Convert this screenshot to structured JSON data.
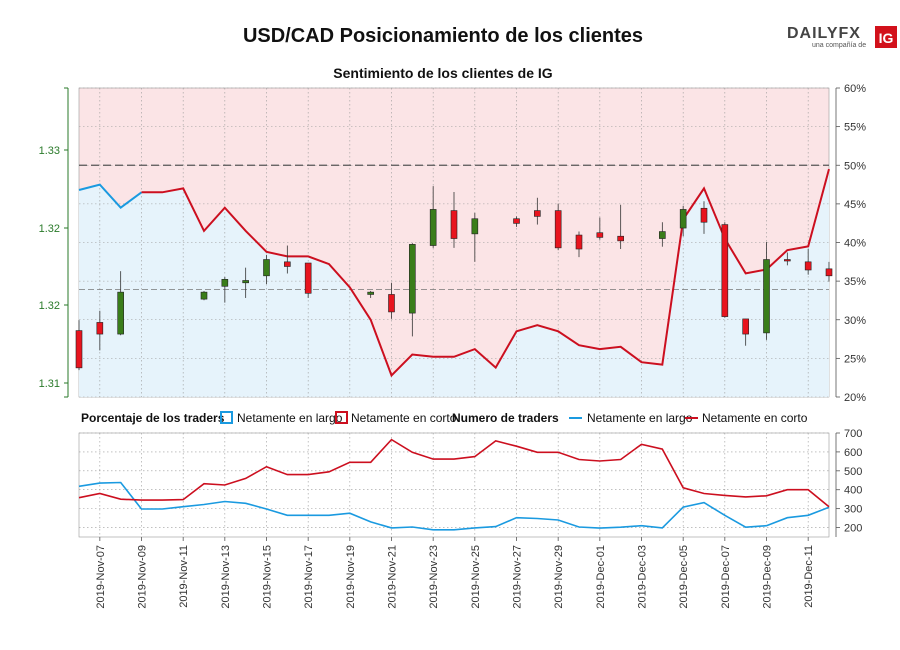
{
  "header": {
    "title": "USD/CAD Posicionamiento de los clientes",
    "brand": "DAILYFX",
    "brand_sub": "una compañía de",
    "brand_badge": "IG"
  },
  "colors": {
    "long": "#1a9ae0",
    "short": "#cc0f1f",
    "candle_up": "#3a7d1a",
    "candle_down": "#e8141e",
    "bg_long": "#e6f3fb",
    "bg_short": "#fbe4e6"
  },
  "chart_data": [
    {
      "type": "line",
      "title": "Sentimiento de los clientes de IG",
      "x": [
        "2019-Nov-06",
        "2019-Nov-07",
        "2019-Nov-08",
        "2019-Nov-09",
        "2019-Nov-10",
        "2019-Nov-11",
        "2019-Nov-12",
        "2019-Nov-13",
        "2019-Nov-14",
        "2019-Nov-15",
        "2019-Nov-16",
        "2019-Nov-17",
        "2019-Nov-18",
        "2019-Nov-19",
        "2019-Nov-20",
        "2019-Nov-21",
        "2019-Nov-22",
        "2019-Nov-23",
        "2019-Nov-24",
        "2019-Nov-25",
        "2019-Nov-26",
        "2019-Nov-27",
        "2019-Nov-28",
        "2019-Nov-29",
        "2019-Nov-30",
        "2019-Dec-01",
        "2019-Dec-02",
        "2019-Dec-03",
        "2019-Dec-04",
        "2019-Dec-05",
        "2019-Dec-06",
        "2019-Dec-07",
        "2019-Dec-08",
        "2019-Dec-09",
        "2019-Dec-10",
        "2019-Dec-11",
        "2019-Dec-12"
      ],
      "series": [
        {
          "name": "Netamente en corto",
          "values": [
            null,
            null,
            null,
            46.5,
            46.5,
            47,
            41.5,
            44.5,
            41.5,
            38.8,
            38.2,
            38.2,
            37.2,
            34.2,
            30,
            22.8,
            25.5,
            25.2,
            25.2,
            26.2,
            23.8,
            28.5,
            29.3,
            28.5,
            26.7,
            26.2,
            26.5,
            24.5,
            24.2,
            43,
            47,
            40.5,
            36,
            36.5,
            39,
            39.5,
            49.5
          ]
        },
        {
          "name": "Netamente en largo",
          "values": [
            53.2,
            52.5,
            55.5,
            53.5,
            53.5,
            53,
            58.5,
            55.5,
            58.5,
            61.2,
            61.8,
            61.8,
            62.8,
            65.8,
            70,
            77.2,
            74.5,
            74.8,
            74.8,
            73.8,
            76.2,
            71.5,
            70.7,
            71.5,
            73.3,
            73.8,
            73.5,
            75.5,
            75.8,
            57,
            53,
            59.5,
            64,
            63.5,
            61,
            60.5,
            50.5
          ]
        }
      ],
      "right_axis": {
        "ylim": [
          20,
          60
        ],
        "ticks": [
          "20%",
          "25%",
          "30%",
          "35%",
          "40%",
          "45%",
          "50%",
          "55%",
          "60%"
        ]
      },
      "left_axis": {
        "ticks": [
          "1.31",
          "1.32",
          "1.32",
          "1.33"
        ]
      },
      "reference_lines": [
        {
          "value": 50,
          "label": "50%"
        },
        {
          "value": 33.9,
          "label": ""
        }
      ],
      "candles": [
        {
          "date": "2019-Nov-06",
          "open": 1.3145,
          "close": 1.3113,
          "high": 1.3154,
          "low": 1.3111
        },
        {
          "date": "2019-Nov-07",
          "open": 1.3152,
          "close": 1.3142,
          "high": 1.3162,
          "low": 1.3128
        },
        {
          "date": "2019-Nov-08",
          "open": 1.3142,
          "close": 1.3178,
          "high": 1.3196,
          "low": 1.3141
        },
        {
          "date": "2019-Nov-12",
          "open": 1.3172,
          "close": 1.3178,
          "high": 1.3179,
          "low": 1.3171
        },
        {
          "date": "2019-Nov-13",
          "open": 1.3183,
          "close": 1.3189,
          "high": 1.3191,
          "low": 1.3169
        },
        {
          "date": "2019-Nov-14",
          "open": 1.3186,
          "close": 1.3188,
          "high": 1.3199,
          "low": 1.3173
        },
        {
          "date": "2019-Nov-15",
          "open": 1.3192,
          "close": 1.3206,
          "high": 1.321,
          "low": 1.3185
        },
        {
          "date": "2019-Nov-16",
          "open": 1.3204,
          "close": 1.32,
          "high": 1.3218,
          "low": 1.3194
        },
        {
          "date": "2019-Nov-17",
          "open": 1.3203,
          "close": 1.3177,
          "high": 1.3203,
          "low": 1.3173
        },
        {
          "date": "2019-Nov-20",
          "open": 1.3176,
          "close": 1.3178,
          "high": 1.3179,
          "low": 1.3173
        },
        {
          "date": "2019-Nov-21",
          "open": 1.3176,
          "close": 1.3161,
          "high": 1.3186,
          "low": 1.3155
        },
        {
          "date": "2019-Nov-22",
          "open": 1.316,
          "close": 1.3219,
          "high": 1.322,
          "low": 1.314
        },
        {
          "date": "2019-Nov-23",
          "open": 1.3218,
          "close": 1.3249,
          "high": 1.3269,
          "low": 1.3216
        },
        {
          "date": "2019-Nov-24",
          "open": 1.3248,
          "close": 1.3224,
          "high": 1.3264,
          "low": 1.3216
        },
        {
          "date": "2019-Nov-25",
          "open": 1.3228,
          "close": 1.3241,
          "high": 1.3246,
          "low": 1.3204
        },
        {
          "date": "2019-Nov-27",
          "open": 1.3241,
          "close": 1.3237,
          "high": 1.3243,
          "low": 1.3234
        },
        {
          "date": "2019-Nov-28",
          "open": 1.3248,
          "close": 1.3243,
          "high": 1.3259,
          "low": 1.3236
        },
        {
          "date": "2019-Nov-29",
          "open": 1.3248,
          "close": 1.3216,
          "high": 1.3254,
          "low": 1.3214
        },
        {
          "date": "2019-Nov-30",
          "open": 1.3227,
          "close": 1.3215,
          "high": 1.323,
          "low": 1.3208
        },
        {
          "date": "2019-Dec-01",
          "open": 1.3229,
          "close": 1.3225,
          "high": 1.3242,
          "low": 1.3223
        },
        {
          "date": "2019-Dec-02",
          "open": 1.3226,
          "close": 1.3222,
          "high": 1.3253,
          "low": 1.3215
        },
        {
          "date": "2019-Dec-04",
          "open": 1.3224,
          "close": 1.323,
          "high": 1.3238,
          "low": 1.3217
        },
        {
          "date": "2019-Dec-05",
          "open": 1.3233,
          "close": 1.3249,
          "high": 1.3252,
          "low": 1.3226
        },
        {
          "date": "2019-Dec-06",
          "open": 1.325,
          "close": 1.3238,
          "high": 1.3256,
          "low": 1.3228
        },
        {
          "date": "2019-Dec-07",
          "open": 1.3236,
          "close": 1.3157,
          "high": 1.3238,
          "low": 1.3156
        },
        {
          "date": "2019-Dec-08",
          "open": 1.3155,
          "close": 1.3142,
          "high": 1.3155,
          "low": 1.3132
        },
        {
          "date": "2019-Dec-09",
          "open": 1.3143,
          "close": 1.3206,
          "high": 1.3221,
          "low": 1.3137
        },
        {
          "date": "2019-Dec-10",
          "open": 1.3206,
          "close": 1.3205,
          "high": 1.3212,
          "low": 1.3201
        },
        {
          "date": "2019-Dec-11",
          "open": 1.3204,
          "close": 1.3197,
          "high": 1.3215,
          "low": 1.3193
        },
        {
          "date": "2019-Dec-12",
          "open": 1.3198,
          "close": 1.3192,
          "high": 1.3204,
          "low": 1.3187
        },
        {
          "date": "2019-Dec-13",
          "open": 1.3191,
          "close": 1.314,
          "high": 1.3192,
          "low": 1.3133
        }
      ]
    },
    {
      "type": "line",
      "title": "Numero de traders",
      "x": [
        "2019-Nov-06",
        "2019-Nov-07",
        "2019-Nov-08",
        "2019-Nov-09",
        "2019-Nov-10",
        "2019-Nov-11",
        "2019-Nov-12",
        "2019-Nov-13",
        "2019-Nov-14",
        "2019-Nov-15",
        "2019-Nov-16",
        "2019-Nov-17",
        "2019-Nov-18",
        "2019-Nov-19",
        "2019-Nov-20",
        "2019-Nov-21",
        "2019-Nov-22",
        "2019-Nov-23",
        "2019-Nov-24",
        "2019-Nov-25",
        "2019-Nov-26",
        "2019-Nov-27",
        "2019-Nov-28",
        "2019-Nov-29",
        "2019-Nov-30",
        "2019-Dec-01",
        "2019-Dec-02",
        "2019-Dec-03",
        "2019-Dec-04",
        "2019-Dec-05",
        "2019-Dec-06",
        "2019-Dec-07",
        "2019-Dec-08",
        "2019-Dec-09",
        "2019-Dec-10",
        "2019-Dec-11",
        "2019-Dec-12"
      ],
      "ylim": [
        150,
        700
      ],
      "yticks": [
        "200",
        "300",
        "400",
        "500",
        "600",
        "700"
      ],
      "series": [
        {
          "name": "Netamente en largo",
          "values": [
            418,
            435,
            438,
            298,
            298,
            310,
            322,
            338,
            328,
            298,
            265,
            265,
            265,
            276,
            230,
            198,
            203,
            188,
            188,
            198,
            205,
            252,
            248,
            240,
            203,
            197,
            202,
            210,
            198,
            308,
            332,
            265,
            202,
            210,
            252,
            265,
            307
          ]
        },
        {
          "name": "Netamente en corto",
          "values": [
            358,
            380,
            350,
            345,
            345,
            348,
            432,
            425,
            460,
            522,
            480,
            480,
            495,
            545,
            545,
            665,
            598,
            562,
            562,
            575,
            658,
            630,
            598,
            598,
            560,
            552,
            560,
            640,
            615,
            410,
            380,
            370,
            362,
            368,
            400,
            400,
            310
          ]
        }
      ]
    }
  ],
  "legend": {
    "pct_title": "Porcentaje de los traders",
    "pct_long": "Netamente en largo",
    "pct_short": "Netamente en corto",
    "num_title": "Numero de traders",
    "num_long": "Netamente en largo",
    "num_short": "Netamente en corto"
  },
  "xaxis_labels": [
    "2019-Nov-07",
    "2019-Nov-09",
    "2019-Nov-11",
    "2019-Nov-13",
    "2019-Nov-15",
    "2019-Nov-17",
    "2019-Nov-19",
    "2019-Nov-21",
    "2019-Nov-23",
    "2019-Nov-25",
    "2019-Nov-27",
    "2019-Nov-29",
    "2019-Dec-01",
    "2019-Dec-03",
    "2019-Dec-05",
    "2019-Dec-07",
    "2019-Dec-09",
    "2019-Dec-11"
  ]
}
